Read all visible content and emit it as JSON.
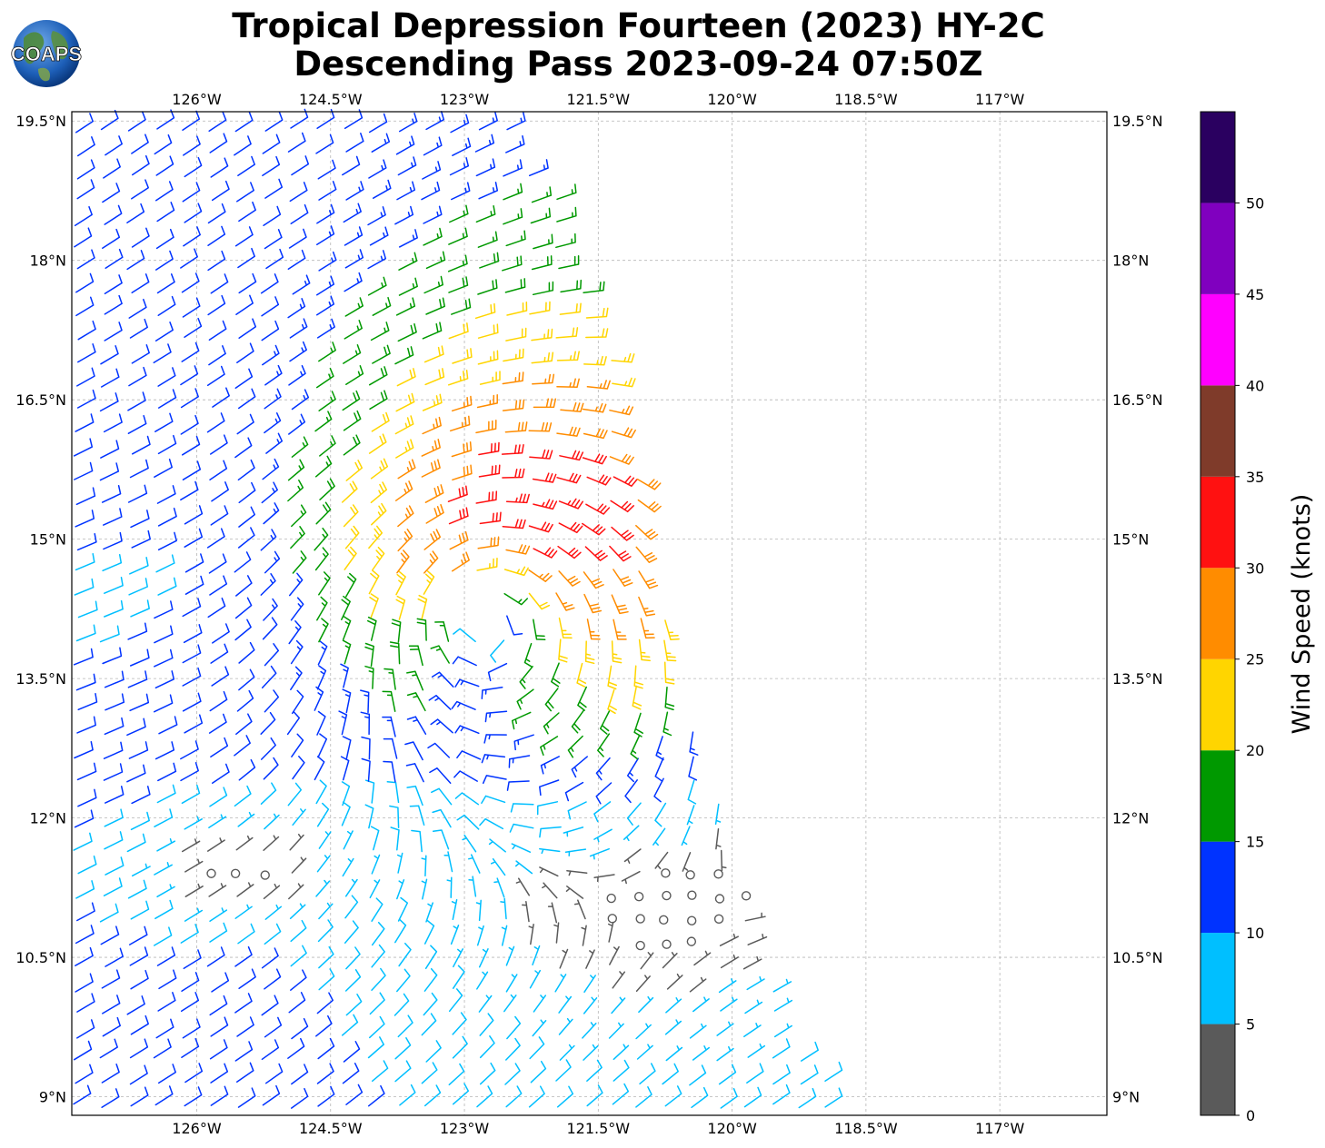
{
  "logo": {
    "text": "COAPS"
  },
  "title": {
    "line1": "Tropical Depression Fourteen (2023) HY-2C",
    "line2": "Descending Pass 2023-09-24 07:50Z"
  },
  "map": {
    "lon_range": [
      -127.4,
      -115.8
    ],
    "lat_range": [
      8.8,
      19.6
    ],
    "lon_ticks": [
      {
        "value": -126.0,
        "label": "126°W"
      },
      {
        "value": -124.5,
        "label": "124.5°W"
      },
      {
        "value": -123.0,
        "label": "123°W"
      },
      {
        "value": -121.5,
        "label": "121.5°W"
      },
      {
        "value": -120.0,
        "label": "120°W"
      },
      {
        "value": -118.5,
        "label": "118.5°W"
      },
      {
        "value": -117.0,
        "label": "117°W"
      }
    ],
    "lat_ticks": [
      {
        "value": 19.5,
        "label": "19.5°N"
      },
      {
        "value": 18.0,
        "label": "18°N"
      },
      {
        "value": 16.5,
        "label": "16.5°N"
      },
      {
        "value": 15.0,
        "label": "15°N"
      },
      {
        "value": 13.5,
        "label": "13.5°N"
      },
      {
        "value": 12.0,
        "label": "12°N"
      },
      {
        "value": 10.5,
        "label": "10.5°N"
      },
      {
        "value": 9.0,
        "label": "9°N"
      }
    ],
    "grid": true,
    "storm_center": {
      "lon": -122.9,
      "lat": 14.3
    }
  },
  "colorbar": {
    "title": "Wind Speed (knots)",
    "min": 0,
    "max": 55,
    "bins": [
      {
        "from": 0,
        "to": 5,
        "color": "#5a5a5a"
      },
      {
        "from": 5,
        "to": 10,
        "color": "#00bfff"
      },
      {
        "from": 10,
        "to": 15,
        "color": "#0033ff"
      },
      {
        "from": 15,
        "to": 20,
        "color": "#009900"
      },
      {
        "from": 20,
        "to": 25,
        "color": "#ffd500"
      },
      {
        "from": 25,
        "to": 30,
        "color": "#ff8c00"
      },
      {
        "from": 30,
        "to": 35,
        "color": "#ff1111"
      },
      {
        "from": 35,
        "to": 40,
        "color": "#7f3b2a"
      },
      {
        "from": 40,
        "to": 45,
        "color": "#ff00ff"
      },
      {
        "from": 45,
        "to": 50,
        "color": "#8000bf"
      },
      {
        "from": 50,
        "to": 55,
        "color": "#2a0060"
      }
    ],
    "ticks": [
      0,
      5,
      10,
      15,
      20,
      25,
      30,
      35,
      40,
      45,
      50
    ]
  }
}
